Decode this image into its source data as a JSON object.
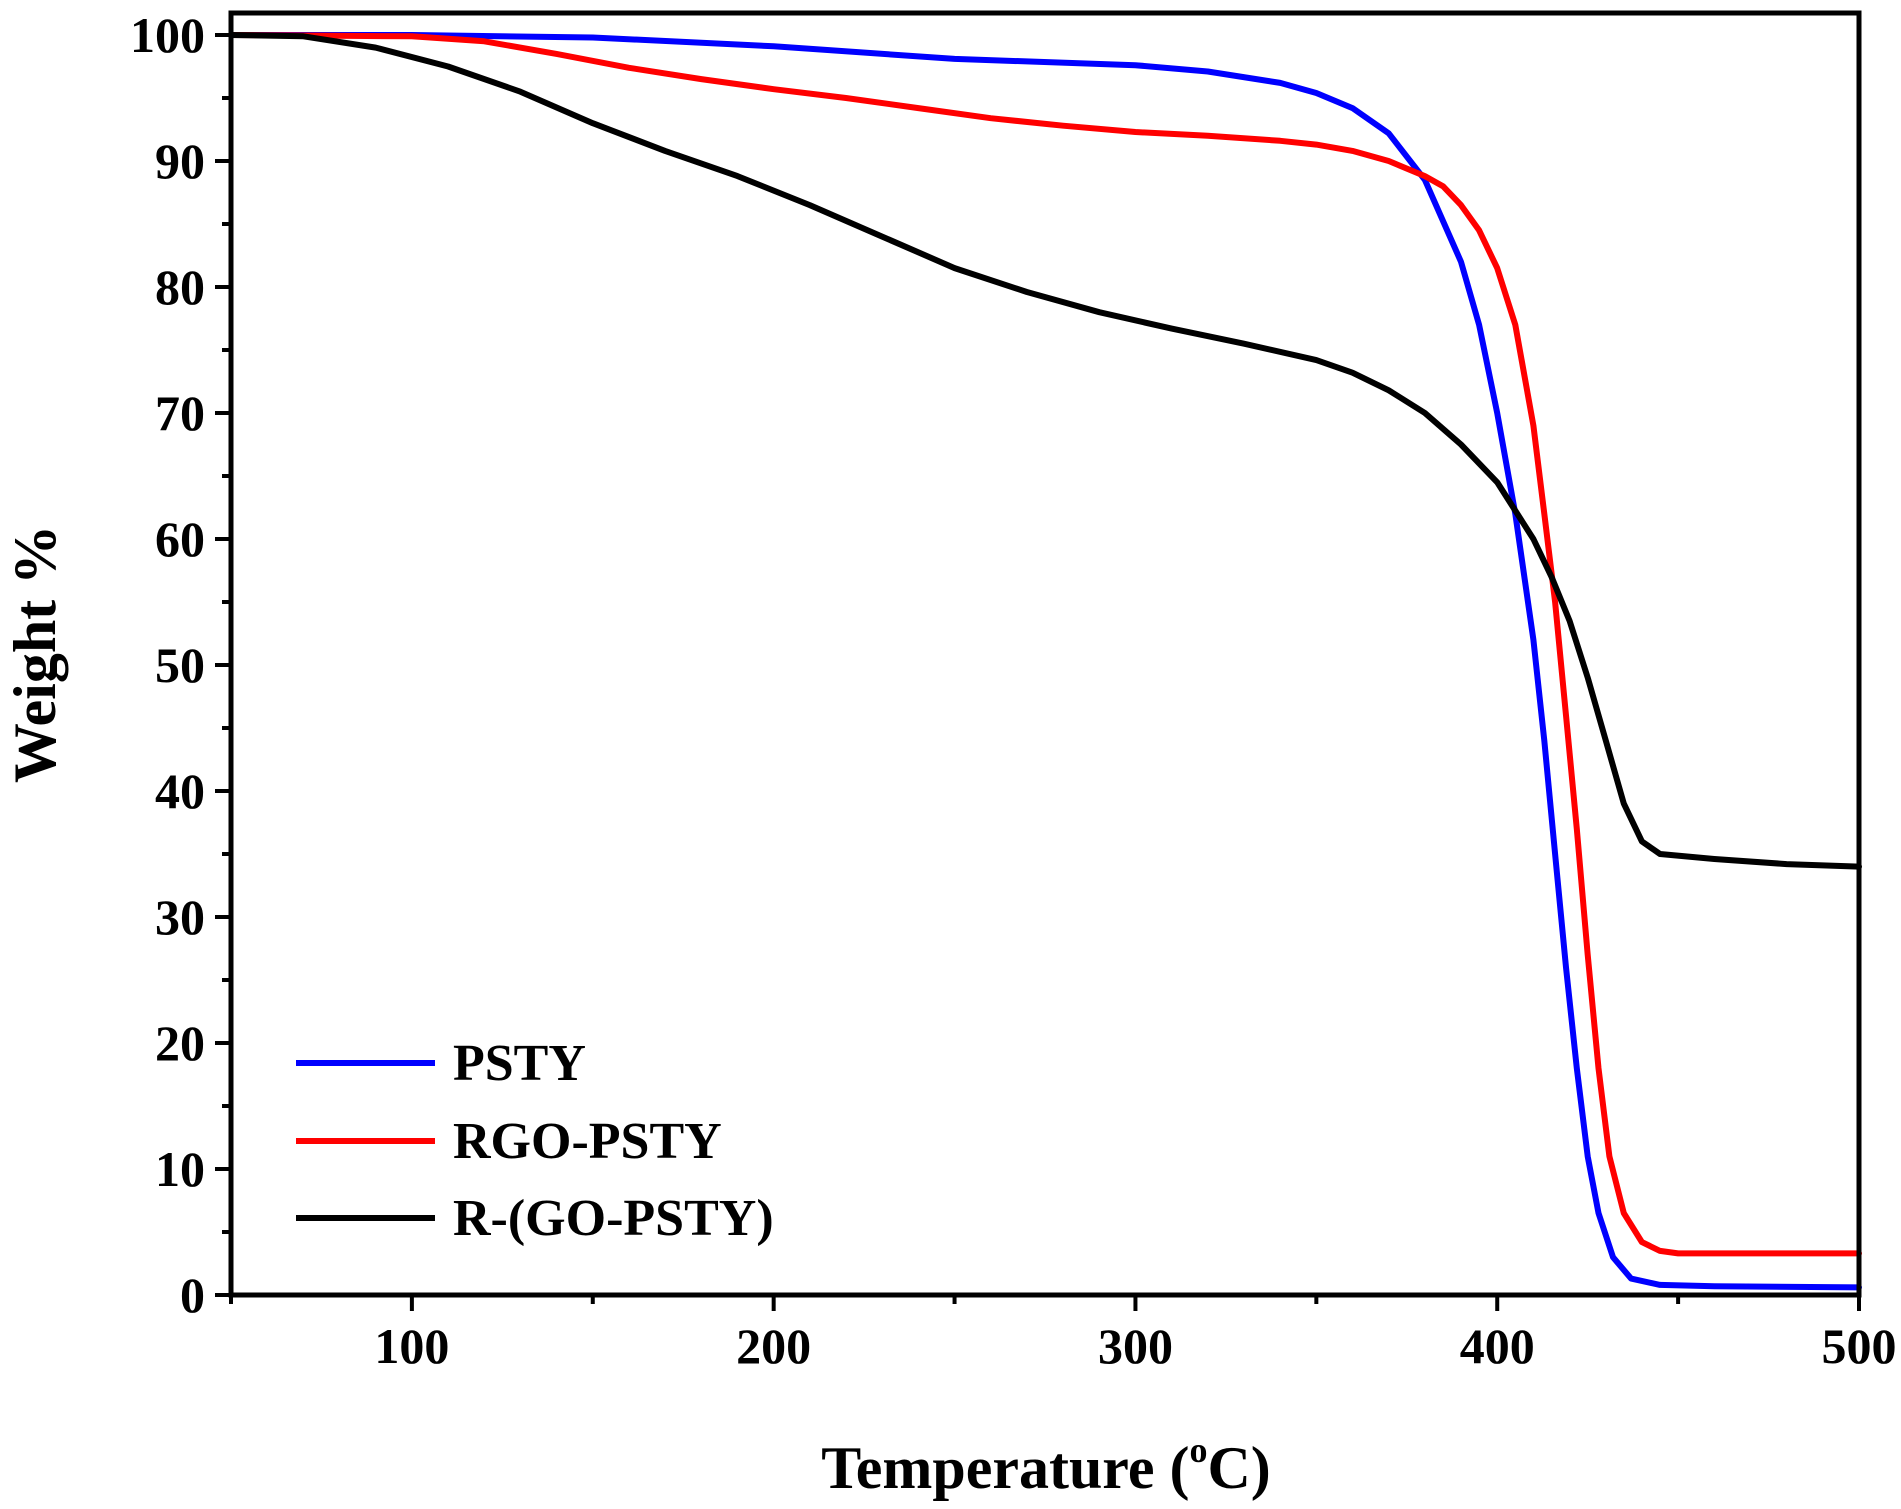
{
  "chart_data": {
    "type": "line",
    "title": "",
    "xlabel": "Temperature (",
    "xlabel_sup": "o",
    "xlabel_end": "C)",
    "ylabel": "Weight %",
    "xlim": [
      50,
      500
    ],
    "ylim": [
      0,
      100
    ],
    "x_ticks": [
      100,
      200,
      300,
      400,
      500
    ],
    "x_tick_labels": [
      "100",
      "200",
      "300",
      "400",
      "500"
    ],
    "y_ticks": [
      0,
      10,
      20,
      30,
      40,
      50,
      60,
      70,
      80,
      90,
      100
    ],
    "y_tick_labels": [
      "0",
      "10",
      "20",
      "30",
      "40",
      "50",
      "60",
      "70",
      "80",
      "90",
      "100"
    ],
    "grid": false,
    "legend_position": "bottom-left",
    "series": [
      {
        "name": "PSTY",
        "color": "#0000ff",
        "points": [
          [
            50,
            100
          ],
          [
            100,
            100
          ],
          [
            150,
            99.8
          ],
          [
            200,
            99.1
          ],
          [
            250,
            98.1
          ],
          [
            300,
            97.6
          ],
          [
            320,
            97.1
          ],
          [
            340,
            96.2
          ],
          [
            350,
            95.4
          ],
          [
            360,
            94.2
          ],
          [
            370,
            92.2
          ],
          [
            380,
            88.5
          ],
          [
            390,
            82
          ],
          [
            395,
            77
          ],
          [
            400,
            70
          ],
          [
            405,
            62
          ],
          [
            410,
            52
          ],
          [
            413,
            44
          ],
          [
            416,
            35
          ],
          [
            419,
            26
          ],
          [
            422,
            18
          ],
          [
            425,
            11
          ],
          [
            428,
            6.5
          ],
          [
            432,
            3
          ],
          [
            437,
            1.3
          ],
          [
            445,
            0.8
          ],
          [
            460,
            0.7
          ],
          [
            500,
            0.6
          ]
        ]
      },
      {
        "name": "RGO-PSTY",
        "color": "#ff0000",
        "points": [
          [
            50,
            100
          ],
          [
            100,
            99.9
          ],
          [
            120,
            99.5
          ],
          [
            140,
            98.5
          ],
          [
            160,
            97.4
          ],
          [
            180,
            96.5
          ],
          [
            200,
            95.7
          ],
          [
            220,
            95
          ],
          [
            240,
            94.2
          ],
          [
            260,
            93.4
          ],
          [
            280,
            92.8
          ],
          [
            300,
            92.3
          ],
          [
            320,
            92
          ],
          [
            340,
            91.6
          ],
          [
            350,
            91.3
          ],
          [
            360,
            90.8
          ],
          [
            370,
            90
          ],
          [
            380,
            88.8
          ],
          [
            385,
            88
          ],
          [
            390,
            86.5
          ],
          [
            395,
            84.5
          ],
          [
            400,
            81.5
          ],
          [
            405,
            77
          ],
          [
            410,
            69
          ],
          [
            413,
            62
          ],
          [
            416,
            55
          ],
          [
            419,
            46
          ],
          [
            422,
            37
          ],
          [
            425,
            27
          ],
          [
            428,
            18
          ],
          [
            431,
            11
          ],
          [
            435,
            6.5
          ],
          [
            440,
            4.2
          ],
          [
            445,
            3.5
          ],
          [
            450,
            3.3
          ],
          [
            500,
            3.3
          ]
        ]
      },
      {
        "name": "R-(GO-PSTY)",
        "color": "#000000",
        "points": [
          [
            50,
            100
          ],
          [
            70,
            99.9
          ],
          [
            90,
            99
          ],
          [
            110,
            97.5
          ],
          [
            130,
            95.5
          ],
          [
            150,
            93
          ],
          [
            170,
            90.8
          ],
          [
            190,
            88.8
          ],
          [
            210,
            86.5
          ],
          [
            230,
            84
          ],
          [
            250,
            81.5
          ],
          [
            270,
            79.6
          ],
          [
            290,
            78
          ],
          [
            310,
            76.7
          ],
          [
            330,
            75.5
          ],
          [
            350,
            74.2
          ],
          [
            360,
            73.2
          ],
          [
            370,
            71.8
          ],
          [
            380,
            70
          ],
          [
            390,
            67.5
          ],
          [
            400,
            64.5
          ],
          [
            410,
            60
          ],
          [
            415,
            57
          ],
          [
            420,
            53.5
          ],
          [
            425,
            49
          ],
          [
            430,
            44
          ],
          [
            435,
            39
          ],
          [
            440,
            36
          ],
          [
            445,
            35
          ],
          [
            460,
            34.6
          ],
          [
            480,
            34.2
          ],
          [
            500,
            34
          ]
        ]
      }
    ]
  }
}
